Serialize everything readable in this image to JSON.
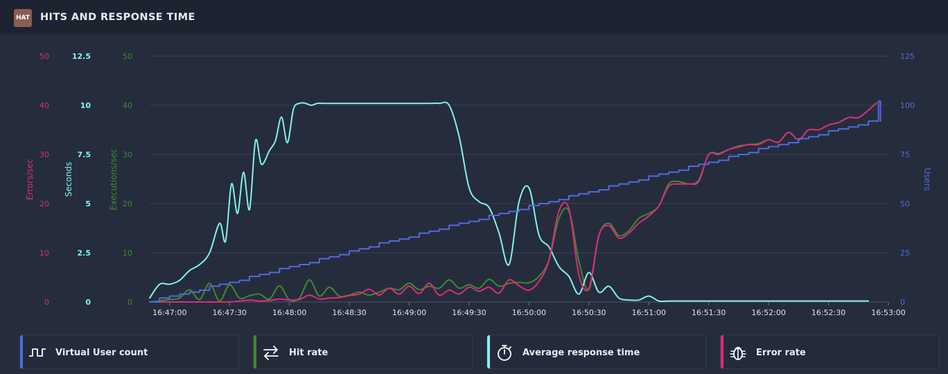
{
  "header": {
    "logo_text": "HAT",
    "title": "HITS AND RESPONSE TIME"
  },
  "legend": [
    {
      "label": "Virtual User count",
      "color": "#5468e0",
      "icon": "step-wave-icon"
    },
    {
      "label": "Hit rate",
      "color": "#3e8a2e",
      "icon": "swap-arrows-icon"
    },
    {
      "label": "Average response time",
      "color": "#84f2f0",
      "icon": "stopwatch-icon"
    },
    {
      "label": "Error rate",
      "color": "#e02a7a",
      "icon": "bug-icon"
    }
  ],
  "chart_data": {
    "type": "line",
    "grid": true,
    "x_unit": "seconds since 16:47:00",
    "x_ticks": [
      "16:47:00",
      "16:47:30",
      "16:48:00",
      "16:48:30",
      "16:49:00",
      "16:49:30",
      "16:50:00",
      "16:50:30",
      "16:51:00",
      "16:51:30",
      "16:52:00",
      "16:52:30",
      "16:53:00"
    ],
    "axes": [
      {
        "id": "errors",
        "label": "Errors/sec",
        "color": "#e02a7a",
        "range": [
          0,
          50
        ],
        "ticks": [
          "0",
          "10",
          "20",
          "30",
          "40",
          "50"
        ]
      },
      {
        "id": "seconds",
        "label": "Seconds",
        "color": "#84f2f0",
        "range": [
          0,
          12.5
        ],
        "ticks": [
          "0",
          "2.5",
          "5",
          "7.5",
          "10",
          "12.5"
        ]
      },
      {
        "id": "executions",
        "label": "Executions/sec",
        "color": "#3e8a2e",
        "range": [
          0,
          50
        ],
        "ticks": [
          "0",
          "10",
          "20",
          "30",
          "40",
          "50"
        ]
      },
      {
        "id": "users",
        "label": "Users",
        "color": "#5468e0",
        "range": [
          0,
          125
        ],
        "ticks": [
          "0",
          "25",
          "50",
          "75",
          "100",
          "125"
        ]
      }
    ],
    "series": [
      {
        "name": "Virtual User count",
        "axis": "users",
        "color": "#5468e0",
        "step": true,
        "x": [
          -10,
          -5,
          0,
          5,
          10,
          15,
          20,
          25,
          30,
          35,
          40,
          45,
          50,
          55,
          60,
          65,
          70,
          75,
          80,
          85,
          90,
          95,
          100,
          105,
          110,
          115,
          120,
          125,
          130,
          135,
          140,
          145,
          150,
          155,
          160,
          165,
          170,
          175,
          180,
          185,
          190,
          195,
          200,
          205,
          210,
          215,
          220,
          225,
          230,
          235,
          240,
          245,
          250,
          255,
          260,
          265,
          270,
          275,
          280,
          285,
          290,
          295,
          300,
          305,
          310,
          315,
          320,
          325,
          330,
          335,
          340,
          345,
          350,
          355,
          355,
          356
        ],
        "y": [
          0,
          2,
          3,
          4,
          5,
          6,
          8,
          9,
          10,
          11,
          13,
          14,
          15,
          17,
          18,
          19,
          20,
          22,
          23,
          24,
          26,
          27,
          28,
          30,
          31,
          32,
          33,
          35,
          36,
          37,
          39,
          40,
          41,
          42,
          44,
          45,
          46,
          47,
          49,
          50,
          51,
          52,
          54,
          55,
          56,
          57,
          59,
          60,
          61,
          62,
          64,
          65,
          66,
          67,
          69,
          70,
          71,
          72,
          74,
          75,
          76,
          78,
          79,
          80,
          81,
          83,
          84,
          85,
          87,
          88,
          89,
          90,
          92,
          93,
          102,
          92
        ]
      },
      {
        "name": "Average response time",
        "axis": "seconds",
        "color": "#84f2f0",
        "x": [
          -10,
          -5,
          0,
          5,
          10,
          15,
          20,
          25,
          28,
          31,
          34,
          37,
          40,
          43,
          46,
          50,
          53,
          56,
          59,
          62,
          65,
          68,
          71,
          74,
          77,
          80,
          83,
          86,
          89,
          92,
          95,
          100,
          105,
          110,
          115,
          120,
          125,
          130,
          135,
          140,
          145,
          150,
          155,
          160,
          165,
          170,
          175,
          180,
          185,
          190,
          195,
          200,
          205,
          210,
          215,
          220,
          225,
          230,
          235,
          240,
          245,
          250,
          255,
          260,
          265,
          270,
          275,
          280,
          285,
          290,
          295,
          300,
          305,
          310,
          320,
          330,
          340,
          350
        ],
        "y": [
          0.2,
          0.9,
          0.9,
          1.1,
          1.6,
          1.9,
          2.5,
          4.0,
          3.1,
          6.0,
          4.5,
          6.6,
          4.7,
          8.2,
          7.0,
          7.7,
          8.2,
          9.4,
          8.1,
          9.8,
          10.1,
          10.1,
          10.0,
          10.1,
          10.1,
          10.1,
          10.1,
          10.1,
          10.1,
          10.1,
          10.1,
          10.1,
          10.1,
          10.1,
          10.1,
          10.1,
          10.1,
          10.1,
          10.1,
          10.0,
          8.4,
          5.8,
          5.1,
          4.8,
          3.5,
          1.9,
          5.1,
          5.8,
          3.4,
          2.8,
          1.8,
          1.3,
          0.4,
          1.5,
          0.5,
          0.8,
          0.2,
          0.1,
          0.1,
          0.3,
          0.05,
          0.05,
          0.05,
          0.05,
          0.05,
          0.05,
          0.05,
          0.05,
          0.05,
          0.05,
          0.05,
          0.05,
          0.05,
          0.05,
          0.05,
          0.05,
          0.05,
          0.05
        ]
      },
      {
        "name": "Hit rate",
        "axis": "executions",
        "color": "#3e8a2e",
        "x": [
          -10,
          -5,
          0,
          5,
          10,
          15,
          20,
          25,
          30,
          35,
          40,
          45,
          50,
          55,
          60,
          65,
          70,
          75,
          80,
          85,
          90,
          95,
          100,
          105,
          110,
          115,
          120,
          125,
          130,
          135,
          140,
          145,
          150,
          155,
          160,
          165,
          170,
          175,
          180,
          185,
          190,
          195,
          200,
          205,
          210,
          215,
          220,
          225,
          230,
          235,
          240,
          245,
          250,
          255,
          260,
          265,
          270,
          275,
          280,
          285,
          290,
          295,
          300,
          305,
          310,
          315,
          320,
          325,
          330,
          335,
          340,
          345,
          350,
          354
        ],
        "y": [
          0,
          0.2,
          0.5,
          0.8,
          2.5,
          0.5,
          3.8,
          0.2,
          3.5,
          0.8,
          1.3,
          1.6,
          0.6,
          3.3,
          0.4,
          0.8,
          4.5,
          1.2,
          3.0,
          1.2,
          1.4,
          2.0,
          1.4,
          2.0,
          2.8,
          2.5,
          3.8,
          2.5,
          3.2,
          2.8,
          4.5,
          2.8,
          3.5,
          2.8,
          4.6,
          3.2,
          3.8,
          4.0,
          3.9,
          5.2,
          8.5,
          17,
          18.5,
          8.3,
          2.5,
          13.5,
          16,
          13.5,
          14.5,
          17,
          18,
          19.5,
          24,
          24.5,
          24,
          24.8,
          30,
          30.2,
          31,
          31.7,
          32,
          32.2,
          33,
          32.5,
          34.5,
          33,
          35,
          35,
          36,
          36.5,
          37.5,
          37.5,
          39,
          40.5
        ]
      },
      {
        "name": "Error rate",
        "axis": "errors",
        "color": "#e02a7a",
        "x": [
          -10,
          -5,
          0,
          5,
          10,
          15,
          20,
          25,
          30,
          35,
          40,
          45,
          50,
          55,
          60,
          65,
          70,
          75,
          80,
          85,
          90,
          95,
          100,
          105,
          110,
          115,
          120,
          125,
          130,
          135,
          140,
          145,
          150,
          155,
          160,
          165,
          170,
          175,
          180,
          185,
          190,
          195,
          200,
          205,
          210,
          215,
          220,
          225,
          230,
          235,
          240,
          245,
          250,
          255,
          260,
          265,
          270,
          275,
          280,
          285,
          290,
          295,
          300,
          305,
          310,
          315,
          320,
          325,
          330,
          335,
          340,
          345,
          350,
          354
        ],
        "y": [
          0,
          0,
          0,
          0,
          0,
          0,
          0,
          0,
          0,
          0.2,
          0.4,
          0.2,
          0.3,
          0.6,
          0.4,
          0.5,
          1.4,
          0.6,
          0.8,
          0.9,
          1.3,
          1.6,
          2.6,
          1.4,
          2.8,
          1.6,
          3.2,
          1.7,
          3.8,
          1.4,
          2.4,
          1.6,
          3.0,
          2.2,
          3.0,
          1.8,
          4.5,
          3.3,
          2.4,
          4.2,
          8.5,
          18.5,
          19,
          5.5,
          2.8,
          13.5,
          15.5,
          13.0,
          14.0,
          16.0,
          17.5,
          19.5,
          23.5,
          24.0,
          24.0,
          24.5,
          30.0,
          30.0,
          31.0,
          31.5,
          32.0,
          32.0,
          33.0,
          32.5,
          34.5,
          33.0,
          35.0,
          35.0,
          36.0,
          36.5,
          37.5,
          37.5,
          39.0,
          40.5
        ]
      }
    ]
  }
}
